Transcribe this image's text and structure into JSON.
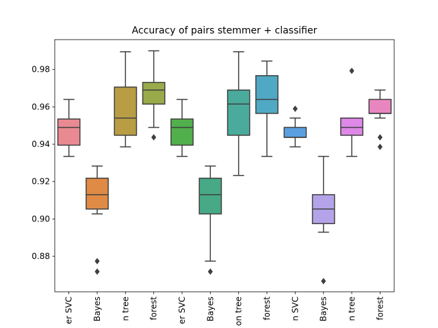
{
  "chart_data": {
    "type": "box",
    "title": "Accuracy of pairs stemmer + classifier",
    "xlabel": "",
    "ylabel": "",
    "ylim": [
      0.861,
      0.996
    ],
    "yticks": [
      "0.88",
      "0.90",
      "0.92",
      "0.94",
      "0.96",
      "0.98"
    ],
    "yticks_values": [
      0.88,
      0.9,
      0.92,
      0.94,
      0.96,
      0.98
    ],
    "grid": false,
    "categories": [
      "er SVC",
      "Bayes",
      "n tree",
      "forest",
      "er SVC",
      "Bayes",
      "on tree",
      "forest",
      "n SVC",
      "Bayes",
      "n tree",
      "forest"
    ],
    "boxes": [
      {
        "color": "#e98a92",
        "whislo": 0.9335,
        "q1": 0.9395,
        "med": 0.949,
        "q3": 0.9535,
        "whishi": 0.964,
        "fliers": []
      },
      {
        "color": "#e08b45",
        "whislo": 0.9027,
        "q1": 0.9053,
        "med": 0.913,
        "q3": 0.9218,
        "whishi": 0.9283,
        "fliers": [
          0.8774,
          0.8718
        ]
      },
      {
        "color": "#b99d44",
        "whislo": 0.9386,
        "q1": 0.9448,
        "med": 0.954,
        "q3": 0.9706,
        "whishi": 0.9895,
        "fliers": []
      },
      {
        "color": "#99aa4b",
        "whislo": 0.949,
        "q1": 0.9615,
        "med": 0.969,
        "q3": 0.9731,
        "whishi": 0.99,
        "fliers": [
          0.9437
        ]
      },
      {
        "color": "#51b04c",
        "whislo": 0.9335,
        "q1": 0.9395,
        "med": 0.949,
        "q3": 0.9535,
        "whishi": 0.964,
        "fliers": []
      },
      {
        "color": "#47a986",
        "whislo": 0.8774,
        "q1": 0.9027,
        "med": 0.913,
        "q3": 0.9218,
        "whishi": 0.9283,
        "fliers": [
          0.8718
        ]
      },
      {
        "color": "#4aab9c",
        "whislo": 0.9233,
        "q1": 0.9448,
        "med": 0.9615,
        "q3": 0.969,
        "whishi": 0.9895,
        "fliers": []
      },
      {
        "color": "#50a9c4",
        "whislo": 0.9335,
        "q1": 0.9565,
        "med": 0.964,
        "q3": 0.9767,
        "whishi": 0.9845,
        "fliers": []
      },
      {
        "color": "#5b9fe0",
        "whislo": 0.9386,
        "q1": 0.9437,
        "med": 0.9437,
        "q3": 0.949,
        "whishi": 0.954,
        "fliers": [
          0.959
        ]
      },
      {
        "color": "#b4a3e8",
        "whislo": 0.8929,
        "q1": 0.8975,
        "med": 0.9053,
        "q3": 0.913,
        "whishi": 0.9335,
        "fliers": [
          0.8667
        ]
      },
      {
        "color": "#df88e8",
        "whislo": 0.9335,
        "q1": 0.9448,
        "med": 0.949,
        "q3": 0.954,
        "whishi": 0.954,
        "fliers": [
          0.9793
        ]
      },
      {
        "color": "#e886c0",
        "whislo": 0.954,
        "q1": 0.9565,
        "med": 0.9565,
        "q3": 0.964,
        "whishi": 0.969,
        "fliers": [
          0.9437,
          0.9386
        ]
      }
    ]
  }
}
